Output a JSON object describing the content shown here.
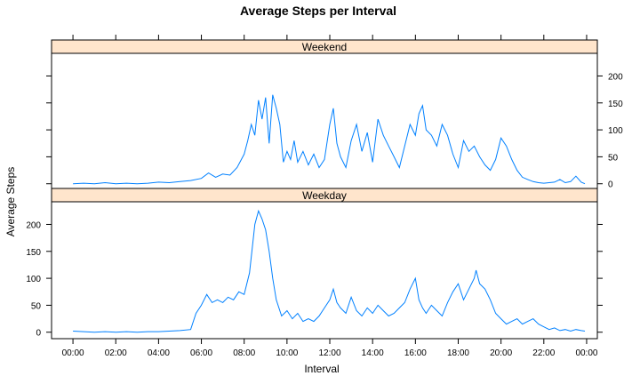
{
  "chart_data": {
    "type": "line",
    "title": "Average Steps per Interval",
    "xlabel": "Interval",
    "ylabel": "Average Steps",
    "x_ticks": [
      "00:00",
      "02:00",
      "04:00",
      "06:00",
      "08:00",
      "10:00",
      "12:00",
      "14:00",
      "16:00",
      "18:00",
      "20:00",
      "22:00",
      "00:00"
    ],
    "y_ticks": [
      0,
      50,
      100,
      150,
      200
    ],
    "ylim": [
      -12,
      242
    ],
    "xlim_minutes": [
      -60,
      1470
    ],
    "layout": "two stacked panels with top strip labels",
    "colors": {
      "line": "#0080ff",
      "strip": "#ffe5cc",
      "frame": "#000000"
    },
    "panels": [
      {
        "name": "Weekend",
        "y_axis_side": "right",
        "points": [
          [
            "00:00",
            0
          ],
          [
            "00:30",
            1
          ],
          [
            "01:00",
            0
          ],
          [
            "01:30",
            2
          ],
          [
            "02:00",
            0
          ],
          [
            "02:30",
            1
          ],
          [
            "03:00",
            0
          ],
          [
            "03:30",
            1
          ],
          [
            "04:00",
            3
          ],
          [
            "04:30",
            2
          ],
          [
            "05:00",
            4
          ],
          [
            "05:30",
            6
          ],
          [
            "06:00",
            10
          ],
          [
            "06:20",
            20
          ],
          [
            "06:40",
            12
          ],
          [
            "07:00",
            18
          ],
          [
            "07:20",
            16
          ],
          [
            "07:40",
            30
          ],
          [
            "08:00",
            55
          ],
          [
            "08:10",
            80
          ],
          [
            "08:20",
            110
          ],
          [
            "08:30",
            90
          ],
          [
            "08:40",
            155
          ],
          [
            "08:50",
            120
          ],
          [
            "09:00",
            160
          ],
          [
            "09:10",
            75
          ],
          [
            "09:20",
            165
          ],
          [
            "09:30",
            140
          ],
          [
            "09:40",
            110
          ],
          [
            "09:50",
            40
          ],
          [
            "10:00",
            60
          ],
          [
            "10:10",
            45
          ],
          [
            "10:20",
            80
          ],
          [
            "10:30",
            40
          ],
          [
            "10:45",
            60
          ],
          [
            "11:00",
            35
          ],
          [
            "11:15",
            55
          ],
          [
            "11:30",
            30
          ],
          [
            "11:45",
            45
          ],
          [
            "12:00",
            110
          ],
          [
            "12:10",
            140
          ],
          [
            "12:20",
            75
          ],
          [
            "12:30",
            50
          ],
          [
            "12:45",
            30
          ],
          [
            "13:00",
            80
          ],
          [
            "13:15",
            110
          ],
          [
            "13:30",
            60
          ],
          [
            "13:45",
            95
          ],
          [
            "14:00",
            40
          ],
          [
            "14:15",
            120
          ],
          [
            "14:30",
            90
          ],
          [
            "14:45",
            70
          ],
          [
            "15:00",
            50
          ],
          [
            "15:15",
            30
          ],
          [
            "15:30",
            70
          ],
          [
            "15:45",
            110
          ],
          [
            "16:00",
            90
          ],
          [
            "16:10",
            130
          ],
          [
            "16:20",
            145
          ],
          [
            "16:30",
            100
          ],
          [
            "16:45",
            90
          ],
          [
            "17:00",
            70
          ],
          [
            "17:15",
            110
          ],
          [
            "17:30",
            90
          ],
          [
            "17:45",
            55
          ],
          [
            "18:00",
            30
          ],
          [
            "18:15",
            80
          ],
          [
            "18:30",
            60
          ],
          [
            "18:45",
            70
          ],
          [
            "19:00",
            50
          ],
          [
            "19:15",
            35
          ],
          [
            "19:30",
            25
          ],
          [
            "19:45",
            45
          ],
          [
            "20:00",
            85
          ],
          [
            "20:15",
            70
          ],
          [
            "20:30",
            45
          ],
          [
            "20:45",
            25
          ],
          [
            "21:00",
            12
          ],
          [
            "21:15",
            8
          ],
          [
            "21:30",
            4
          ],
          [
            "21:45",
            2
          ],
          [
            "22:00",
            1
          ],
          [
            "22:30",
            3
          ],
          [
            "22:45",
            8
          ],
          [
            "23:00",
            2
          ],
          [
            "23:15",
            4
          ],
          [
            "23:30",
            14
          ],
          [
            "23:45",
            3
          ],
          [
            "23:55",
            0
          ]
        ]
      },
      {
        "name": "Weekday",
        "y_axis_side": "left",
        "points": [
          [
            "00:00",
            2
          ],
          [
            "00:30",
            1
          ],
          [
            "01:00",
            0
          ],
          [
            "01:30",
            1
          ],
          [
            "02:00",
            0
          ],
          [
            "02:30",
            1
          ],
          [
            "03:00",
            0
          ],
          [
            "03:30",
            1
          ],
          [
            "04:00",
            1
          ],
          [
            "04:30",
            2
          ],
          [
            "05:00",
            3
          ],
          [
            "05:30",
            5
          ],
          [
            "05:45",
            35
          ],
          [
            "06:00",
            50
          ],
          [
            "06:15",
            70
          ],
          [
            "06:30",
            55
          ],
          [
            "06:45",
            60
          ],
          [
            "07:00",
            55
          ],
          [
            "07:15",
            65
          ],
          [
            "07:30",
            60
          ],
          [
            "07:45",
            75
          ],
          [
            "08:00",
            70
          ],
          [
            "08:15",
            110
          ],
          [
            "08:30",
            200
          ],
          [
            "08:40",
            225
          ],
          [
            "08:50",
            210
          ],
          [
            "09:00",
            190
          ],
          [
            "09:10",
            150
          ],
          [
            "09:20",
            100
          ],
          [
            "09:30",
            60
          ],
          [
            "09:45",
            30
          ],
          [
            "10:00",
            40
          ],
          [
            "10:15",
            25
          ],
          [
            "10:30",
            35
          ],
          [
            "10:45",
            20
          ],
          [
            "11:00",
            25
          ],
          [
            "11:15",
            20
          ],
          [
            "11:30",
            30
          ],
          [
            "11:45",
            45
          ],
          [
            "12:00",
            60
          ],
          [
            "12:10",
            80
          ],
          [
            "12:20",
            55
          ],
          [
            "12:30",
            45
          ],
          [
            "12:45",
            35
          ],
          [
            "13:00",
            65
          ],
          [
            "13:15",
            40
          ],
          [
            "13:30",
            30
          ],
          [
            "13:45",
            45
          ],
          [
            "14:00",
            35
          ],
          [
            "14:15",
            50
          ],
          [
            "14:30",
            40
          ],
          [
            "14:45",
            30
          ],
          [
            "15:00",
            35
          ],
          [
            "15:15",
            45
          ],
          [
            "15:30",
            55
          ],
          [
            "15:45",
            80
          ],
          [
            "16:00",
            100
          ],
          [
            "16:10",
            60
          ],
          [
            "16:20",
            45
          ],
          [
            "16:30",
            35
          ],
          [
            "16:45",
            50
          ],
          [
            "17:00",
            40
          ],
          [
            "17:15",
            30
          ],
          [
            "17:30",
            55
          ],
          [
            "17:45",
            75
          ],
          [
            "18:00",
            90
          ],
          [
            "18:15",
            60
          ],
          [
            "18:30",
            80
          ],
          [
            "18:45",
            100
          ],
          [
            "18:50",
            115
          ],
          [
            "19:00",
            90
          ],
          [
            "19:15",
            80
          ],
          [
            "19:30",
            60
          ],
          [
            "19:45",
            35
          ],
          [
            "20:00",
            25
          ],
          [
            "20:15",
            15
          ],
          [
            "20:30",
            20
          ],
          [
            "20:45",
            25
          ],
          [
            "21:00",
            15
          ],
          [
            "21:15",
            20
          ],
          [
            "21:30",
            25
          ],
          [
            "21:45",
            15
          ],
          [
            "22:00",
            10
          ],
          [
            "22:15",
            5
          ],
          [
            "22:30",
            8
          ],
          [
            "22:45",
            3
          ],
          [
            "23:00",
            5
          ],
          [
            "23:15",
            2
          ],
          [
            "23:30",
            5
          ],
          [
            "23:45",
            3
          ],
          [
            "23:55",
            2
          ]
        ]
      }
    ]
  }
}
